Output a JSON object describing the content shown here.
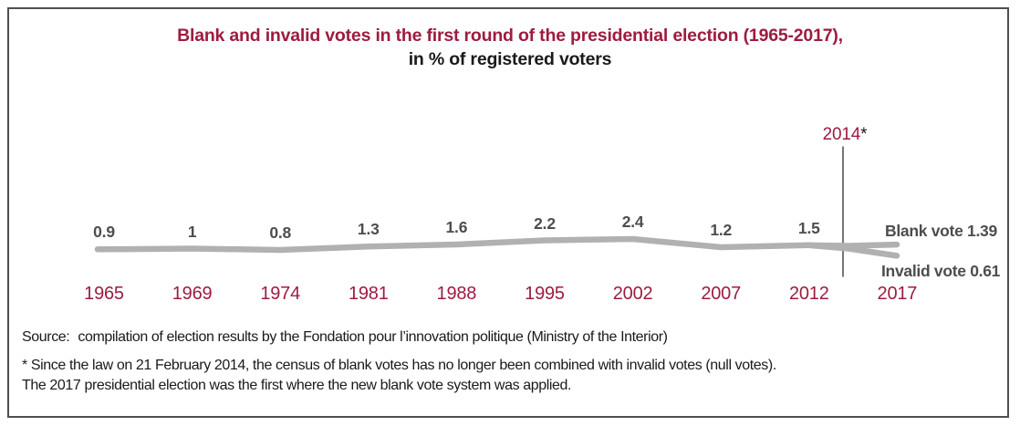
{
  "title": {
    "line1": "Blank and invalid votes in the first round of the presidential election (1965-2017),",
    "line2": "in % of registered voters"
  },
  "chart_data": {
    "type": "line",
    "title": "Blank and invalid votes in the first round of the presidential election (1965-2017), in % of registered voters",
    "categories": [
      "1965",
      "1969",
      "1974",
      "1981",
      "1988",
      "1995",
      "2002",
      "2007",
      "2012",
      "2017"
    ],
    "series": [
      {
        "name": "Blank and invalid votes (combined, 1965-2012)",
        "values": [
          0.9,
          1,
          0.8,
          1.3,
          1.6,
          2.2,
          2.4,
          1.2,
          1.5,
          null
        ],
        "value_labels": [
          "0.9",
          "1",
          "0.8",
          "1.3",
          "1.6",
          "2.2",
          "2.4",
          "1.2",
          "1.5",
          null
        ]
      },
      {
        "name": "Blank vote (2017)",
        "values": [
          null,
          null,
          null,
          null,
          null,
          null,
          null,
          null,
          null,
          1.39
        ]
      },
      {
        "name": "Invalid vote (2017)",
        "values": [
          null,
          null,
          null,
          null,
          null,
          null,
          null,
          null,
          null,
          0.61
        ]
      }
    ],
    "end_labels": {
      "blank": "Blank vote 1.39",
      "invalid": "Invalid vote 0.61"
    },
    "annotation": {
      "year": "2014",
      "asterisk": "*",
      "note": "vertical reference line between 2012 and 2017"
    },
    "xlabel": "",
    "ylabel": "",
    "grid": false,
    "legend_position": "end-of-line"
  },
  "colors": {
    "accent_red": "#9d1c40",
    "line_gray": "#b1b1b1",
    "label_gray": "#4d4d4d",
    "text_black": "#1a1a1a",
    "frame_gray": "#4f4f4f"
  },
  "notes": {
    "source_label": "Source:",
    "source_text": "compilation of election results by the Fondation pour l’innovation politique (Ministry of the Interior)",
    "footnote_line1": "* Since the law on 21 February 2014, the census of blank votes has no longer been combined with invalid votes (null votes).",
    "footnote_line2": "The 2017 presidential election was the first where the new blank vote system was applied."
  }
}
